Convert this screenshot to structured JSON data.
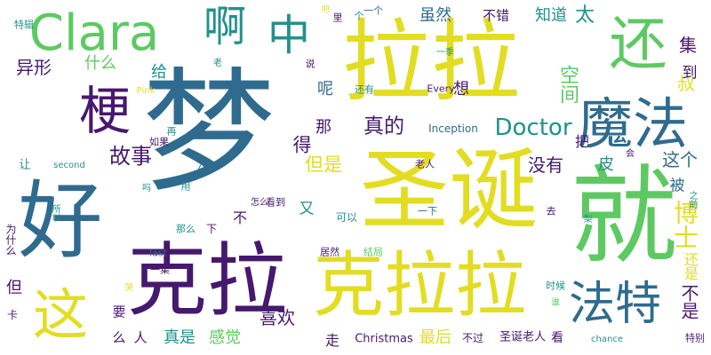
{
  "palette": {
    "background": "#ffffff",
    "dark_purple": "#46186e",
    "blue": "#2f6b8e",
    "teal": "#21918c",
    "green": "#5ec962",
    "yellow": "#e2dd23"
  },
  "words": [
    "梦",
    "就",
    "圣诞",
    "拉拉",
    "好",
    "克拉",
    "克拉拉",
    "Clara",
    "这",
    "还",
    "魔法",
    "梗",
    "啊",
    "中",
    "法特",
    "Doctor",
    "故事",
    "真的",
    "博士",
    "异形",
    "喜欢",
    "最后",
    "真是",
    "感觉",
    "但是",
    "没有",
    "这个",
    "集",
    "太",
    "知道",
    "虽然",
    "不错",
    "什么",
    "空间",
    "叔",
    "得",
    "那",
    "呢",
    "想",
    "被",
    "皮",
    "到",
    "给",
    "Inception",
    "Every",
    "Christmas",
    "last",
    "second",
    "Pink",
    "chance",
    "不是",
    "还是",
    "圣诞老人",
    "老人",
    "不过",
    "一集",
    "一下",
    "一季",
    "结局",
    "居然",
    "可以",
    "看到",
    "怎么",
    "那么",
    "为什么",
    "所以",
    "如果",
    "特辑",
    "特别",
    "时候",
    "之前",
    "谁",
    "去",
    "看",
    "要",
    "人",
    "么",
    "走",
    "但",
    "卡",
    "让",
    "用",
    "下",
    "再",
    "又",
    "不",
    "把",
    "会",
    "吗",
    "里",
    "老",
    "说",
    "个",
    "一个",
    "还有",
    "没",
    "吧",
    "哭",
    "梨"
  ]
}
